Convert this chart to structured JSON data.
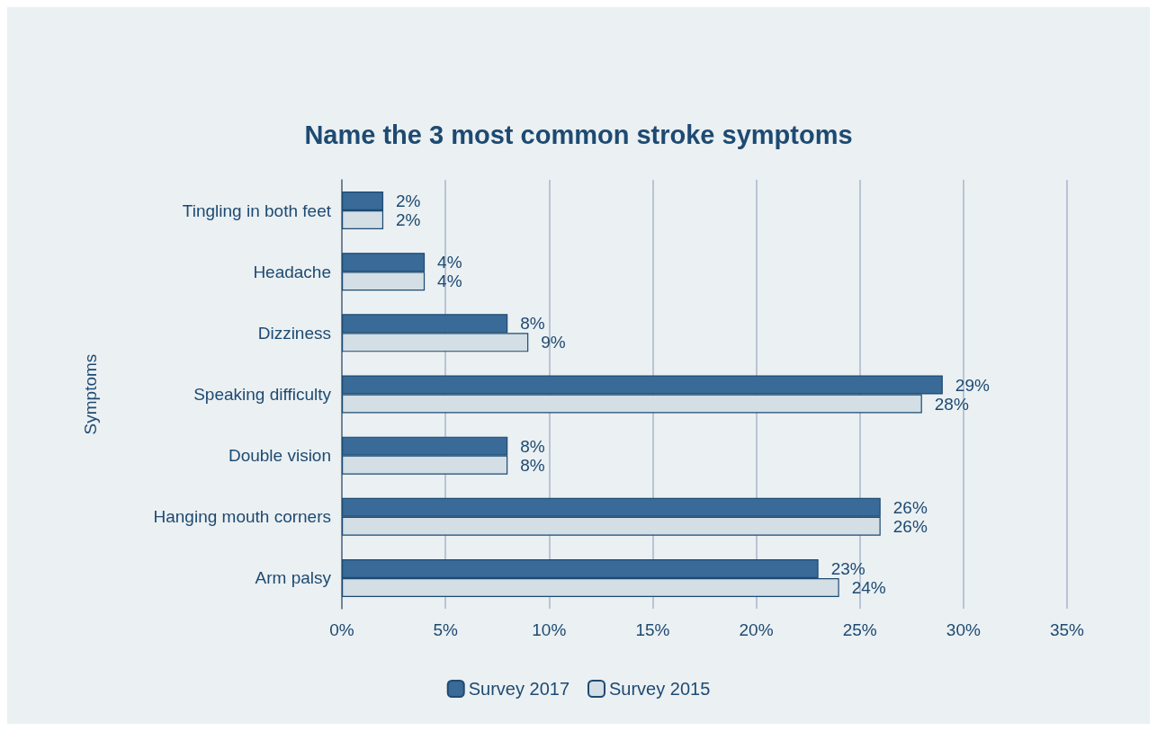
{
  "chart_data": {
    "type": "bar",
    "orientation": "horizontal",
    "title": "Name the 3 most common stroke symptoms",
    "ylabel": "Symptoms",
    "categories": [
      "Tingling in both feet",
      "Headache",
      "Dizziness",
      "Speaking difficulty",
      "Double vision",
      "Hanging mouth corners",
      "Arm palsy"
    ],
    "series": [
      {
        "name": "Survey 2017",
        "color": "#3a6b98",
        "values": [
          2,
          4,
          8,
          29,
          8,
          26,
          23
        ],
        "value_labels": [
          "2%",
          "4%",
          "8%",
          "29%",
          "8%",
          "26%",
          "23%"
        ]
      },
      {
        "name": "Survey 2015",
        "color": "#d3dee5",
        "values": [
          2,
          4,
          9,
          28,
          8,
          26,
          24
        ],
        "value_labels": [
          "2%",
          "4%",
          "9%",
          "28%",
          "8%",
          "26%",
          "24%"
        ]
      }
    ],
    "xlim": [
      0,
      35
    ],
    "xticks": [
      {
        "value": 0,
        "label": "0%"
      },
      {
        "value": 5,
        "label": "5%"
      },
      {
        "value": 10,
        "label": "10%"
      },
      {
        "value": 15,
        "label": "15%"
      },
      {
        "value": 20,
        "label": "20%"
      },
      {
        "value": 25,
        "label": "25%"
      },
      {
        "value": 30,
        "label": "30%"
      },
      {
        "value": 35,
        "label": "35%"
      }
    ],
    "grid": "x",
    "legend": "bottom"
  }
}
